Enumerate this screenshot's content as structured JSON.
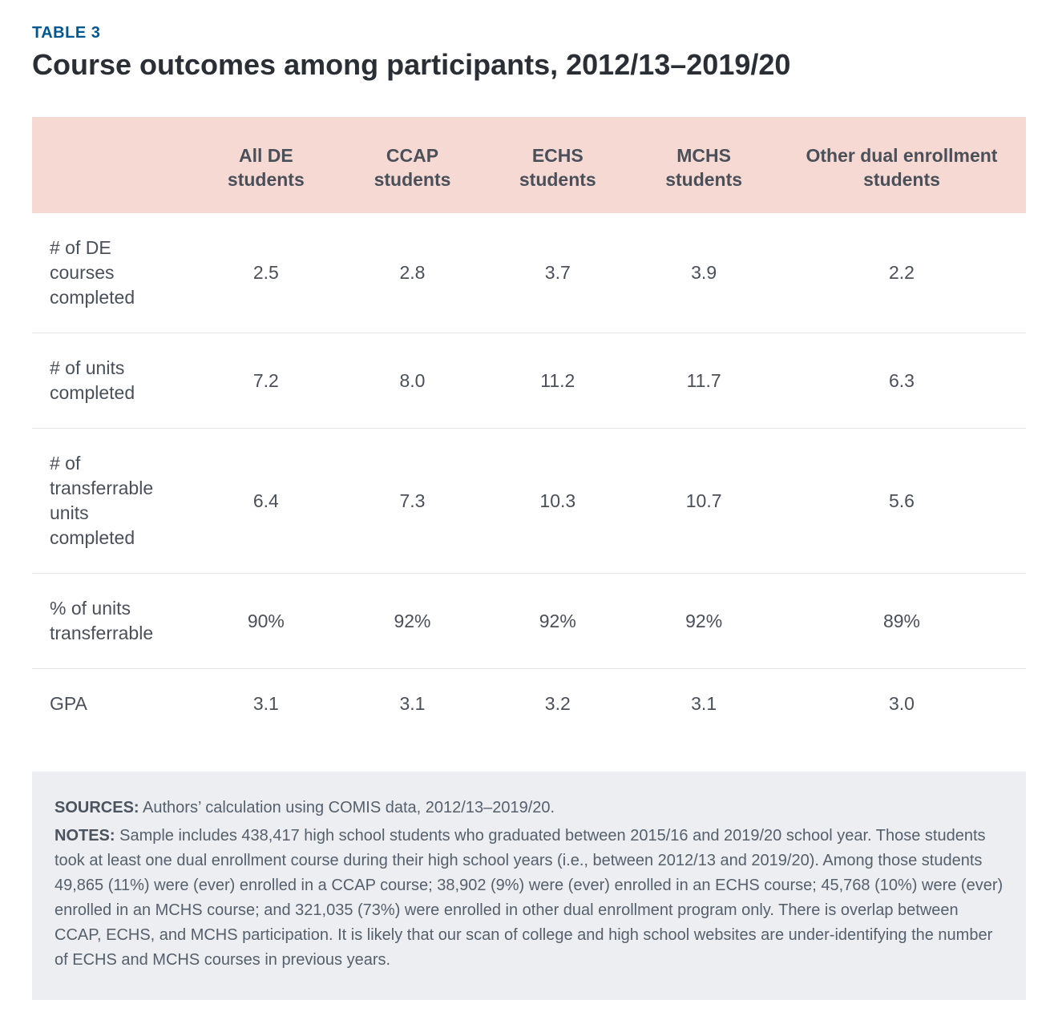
{
  "label": "TABLE 3",
  "title": "Course outcomes among participants, 2012/13–2019/20",
  "table": {
    "type": "table",
    "header_bg": "#f7d9d3",
    "row_border_color": "#e3e6ea",
    "notes_bg": "#eceef1",
    "text_color": "#4a5059",
    "label_color": "#00568f",
    "font_size_body": 23,
    "font_size_notes": 20,
    "columns": [
      "",
      "All DE students",
      "CCAP students",
      "ECHS students",
      "MCHS students",
      "Other dual enrollment students"
    ],
    "rows": [
      {
        "label": "# of DE courses completed",
        "cells": [
          "2.5",
          "2.8",
          "3.7",
          "3.9",
          "2.2"
        ]
      },
      {
        "label": "# of units completed",
        "cells": [
          "7.2",
          "8.0",
          "11.2",
          "11.7",
          "6.3"
        ]
      },
      {
        "label": "# of transferrable units completed",
        "cells": [
          "6.4",
          "7.3",
          "10.3",
          "10.7",
          "5.6"
        ]
      },
      {
        "label": "% of units transferrable",
        "cells": [
          "90%",
          "92%",
          "92%",
          "92%",
          "89%"
        ]
      },
      {
        "label": "GPA",
        "cells": [
          "3.1",
          "3.1",
          "3.2",
          "3.1",
          "3.0"
        ]
      }
    ]
  },
  "sources_label": "SOURCES:",
  "sources_text": " Authors’ calculation using COMIS data, 2012/13–2019/20.",
  "notes_label": "NOTES:",
  "notes_text": " Sample includes 438,417 high school students who graduated between 2015/16 and 2019/20 school year. Those students took at least one dual enrollment course during their high school years (i.e., between 2012/13 and 2019/20). Among those students 49,865 (11%) were (ever) enrolled in a CCAP course; 38,902 (9%) were (ever) enrolled in an ECHS course; 45,768 (10%) were (ever) enrolled in an MCHS course; and 321,035 (73%) were enrolled in other dual enrollment program only. There is overlap between CCAP, ECHS, and MCHS participation. It is likely that our scan of college and high school websites are under-identifying the number of ECHS and MCHS courses in previous years."
}
